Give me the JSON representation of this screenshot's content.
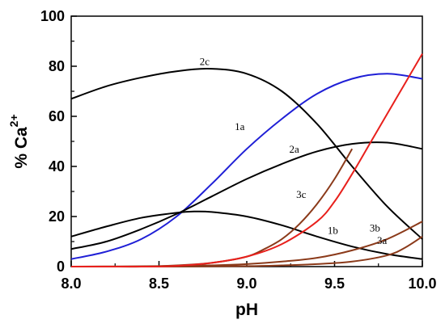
{
  "chart_data": {
    "type": "line",
    "xlabel": "pH",
    "ylabel": {
      "main": "% Ca",
      "superscript": "2+"
    },
    "xlim": [
      8.0,
      10.0
    ],
    "ylim": [
      0,
      100
    ],
    "xticks": [
      "8.0",
      "8.5",
      "9.0",
      "9.5",
      "10.0"
    ],
    "yticks": [
      "0",
      "20",
      "40",
      "60",
      "80",
      "100"
    ],
    "grid": false,
    "legend": "none",
    "series": [
      {
        "name": "1a",
        "color": "#1f1fd6",
        "x": [
          8.0,
          8.2,
          8.4,
          8.6,
          8.8,
          9.0,
          9.2,
          9.4,
          9.6,
          9.8,
          10.0
        ],
        "y": [
          3,
          6,
          11,
          20,
          33,
          47,
          59,
          69,
          75,
          77,
          75
        ]
      },
      {
        "name": "1b",
        "color": "#000000",
        "x": [
          8.0,
          8.2,
          8.4,
          8.6,
          8.7,
          8.8,
          9.0,
          9.2,
          9.4,
          9.6,
          9.8,
          10.0
        ],
        "y": [
          12,
          16,
          19.5,
          21.5,
          22,
          21.8,
          20,
          16.5,
          12,
          8,
          5,
          3
        ]
      },
      {
        "name": "2a",
        "color": "#000000",
        "x": [
          8.0,
          8.2,
          8.4,
          8.6,
          8.8,
          9.0,
          9.2,
          9.4,
          9.6,
          9.8,
          10.0
        ],
        "y": [
          7,
          10,
          15,
          21,
          28,
          35,
          41,
          46,
          49,
          49.5,
          47
        ]
      },
      {
        "name": "2c",
        "color": "#000000",
        "x": [
          8.0,
          8.2,
          8.4,
          8.6,
          8.8,
          9.0,
          9.2,
          9.4,
          9.6,
          9.8,
          10.0
        ],
        "y": [
          67,
          72,
          75.5,
          78,
          79,
          77,
          70,
          57,
          40,
          24,
          11
        ]
      },
      {
        "name": "3a",
        "color": "#8b3a1a",
        "x": [
          8.0,
          8.5,
          9.0,
          9.2,
          9.4,
          9.6,
          9.8,
          9.9,
          10.0
        ],
        "y": [
          0,
          0,
          0.2,
          0.5,
          1,
          2,
          4.5,
          7.5,
          12
        ]
      },
      {
        "name": "3b",
        "color": "#8b3a1a",
        "x": [
          8.0,
          8.5,
          8.8,
          9.0,
          9.2,
          9.4,
          9.6,
          9.8,
          10.0
        ],
        "y": [
          0,
          0.2,
          0.5,
          1,
          2,
          3.5,
          6.5,
          11,
          18
        ]
      },
      {
        "name": "3c",
        "color": "#8b3a1a",
        "x": [
          8.0,
          8.2,
          8.4,
          8.6,
          8.8,
          9.0,
          9.1,
          9.2,
          9.3,
          9.4,
          9.5,
          9.6
        ],
        "y": [
          0,
          0,
          0,
          0.5,
          1.5,
          4,
          7,
          11,
          17,
          25,
          35,
          47
        ]
      },
      {
        "name": "",
        "color": "#e8201c",
        "x": [
          8.0,
          8.4,
          8.6,
          8.8,
          9.0,
          9.2,
          9.4,
          9.5,
          9.6,
          9.7,
          9.8,
          9.9,
          10.0
        ],
        "y": [
          0,
          0,
          0.3,
          1.5,
          4,
          9,
          18,
          26,
          37,
          49,
          61,
          73,
          85
        ]
      }
    ],
    "curve_labels": [
      {
        "text": "2c",
        "x": 8.76,
        "y": 80.5
      },
      {
        "text": "1a",
        "x": 8.96,
        "y": 54.5
      },
      {
        "text": "2a",
        "x": 9.27,
        "y": 45.5
      },
      {
        "text": "3c",
        "x": 9.31,
        "y": 27.5
      },
      {
        "text": "1b",
        "x": 9.49,
        "y": 13
      },
      {
        "text": "3b",
        "x": 9.73,
        "y": 14
      },
      {
        "text": "3a",
        "x": 9.77,
        "y": 9
      }
    ]
  }
}
